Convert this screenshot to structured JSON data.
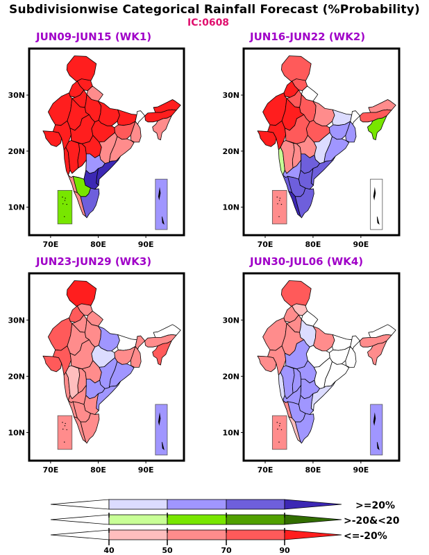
{
  "header": {
    "title": "Subdivisionwise Categorical Rainfall Forecast (%Probability)",
    "ic": "IC:0608"
  },
  "chart_data": {
    "type": "heatmap",
    "title": "Subdivisionwise Categorical Rainfall Forecast (%Probability)",
    "subtitle": "IC:0608",
    "lon_ticks": [
      "70E",
      "80E",
      "90E"
    ],
    "lat_ticks": [
      "30N",
      "20N",
      "10N"
    ],
    "legend": {
      "placement": "bottom",
      "bounds": [
        "40",
        "50",
        "70",
        "90"
      ],
      "categories": [
        {
          "label": ">=20%",
          "key": "above",
          "colors": [
            "#ffffff",
            "#dcdcff",
            "#a096ff",
            "#6e5fdc",
            "#3c28b4"
          ]
        },
        {
          "label": ">-20&<20",
          "key": "normal",
          "colors": [
            "#ffffff",
            "#c8ff96",
            "#78e600",
            "#50a000",
            "#326e00"
          ]
        },
        {
          "label": "<=-20%",
          "key": "below",
          "colors": [
            "#ffffff",
            "#ffbebe",
            "#ff8c8c",
            "#ff5a5a",
            "#ff1e1e"
          ]
        }
      ]
    },
    "panels": [
      {
        "title": "JUN09-JUN15 (WK1)",
        "regions": {
          "jk": "#ff1e1e",
          "hp": "#ff1e1e",
          "uk": "#ff8c8c",
          "pb": "#ff1e1e",
          "hr": "#ff1e1e",
          "wraj": "#ff1e1e",
          "eraj": "#ff1e1e",
          "wup": "#ff1e1e",
          "eup": "#ff1e1e",
          "bih": "#ff1e1e",
          "guj": "#ff1e1e",
          "saur": "#ff1e1e",
          "wmp": "#ff1e1e",
          "emp": "#ff1e1e",
          "jhk": "#ff5a5a",
          "gwb": "#ff8c8c",
          "shwb": "#ffffff",
          "ne_ar": "#ff1e1e",
          "ne_as": "#ff1e1e",
          "ne_nmmt": "#ff8c8c",
          "kon": "#ff1e1e",
          "mmh": "#ff1e1e",
          "mar": "#ff1e1e",
          "vid": "#ff1e1e",
          "chh": "#ff8c8c",
          "ori": "#ff8c8c",
          "tel": "#a096ff",
          "cap": "#3c28b4",
          "ray": "#3c28b4",
          "nik": "#ffffff",
          "ska": "#78e600",
          "cka": "#78e600",
          "ck": "#ff8c8c",
          "ker": "#ff8c8c",
          "tn": "#6e5fdc",
          "lak": "#78e600",
          "anI": "#a096ff"
        }
      },
      {
        "title": "JUN16-JUN22 (WK2)",
        "regions": {
          "jk": "#ff5a5a",
          "hp": "#ff5a5a",
          "uk": "#ffffff",
          "pb": "#ff1e1e",
          "hr": "#ff5a5a",
          "wraj": "#ff1e1e",
          "eraj": "#ff1e1e",
          "wup": "#ff5a5a",
          "eup": "#ff8c8c",
          "bih": "#dcdcff",
          "guj": "#ff1e1e",
          "saur": "#ff1e1e",
          "wmp": "#ff5a5a",
          "emp": "#ff5a5a",
          "jhk": "#a096ff",
          "gwb": "#a096ff",
          "shwb": "#ffffff",
          "ne_ar": "#ff8c8c",
          "ne_as": "#ff5a5a",
          "ne_nmmt": "#78e600",
          "kon": "#c8ff96",
          "mmh": "#ff8c8c",
          "mar": "#ff8c8c",
          "vid": "#ff8c8c",
          "chh": "#dcdcff",
          "ori": "#a096ff",
          "tel": "#6e5fdc",
          "cap": "#6e5fdc",
          "ray": "#6e5fdc",
          "nik": "#a096ff",
          "ska": "#6e5fdc",
          "cka": "#6e5fdc",
          "ck": "#6e5fdc",
          "ker": "#3c28b4",
          "tn": "#6e5fdc",
          "lak": "#ff8c8c",
          "anI": "#ffffff"
        }
      },
      {
        "title": "JUN23-JUN29 (WK3)",
        "regions": {
          "jk": "#ff1e1e",
          "hp": "#ff8c8c",
          "uk": "#ff8c8c",
          "pb": "#ff5a5a",
          "hr": "#ff8c8c",
          "wraj": "#ff5a5a",
          "eraj": "#ff8c8c",
          "wup": "#ff8c8c",
          "eup": "#a096ff",
          "bih": "#ffffff",
          "guj": "#ff5a5a",
          "saur": "#ff5a5a",
          "wmp": "#ff8c8c",
          "emp": "#dcdcff",
          "jhk": "#ff8c8c",
          "gwb": "#ff8c8c",
          "shwb": "#ff8c8c",
          "ne_ar": "#ffffff",
          "ne_as": "#ff8c8c",
          "ne_nmmt": "#ff5a5a",
          "kon": "#ff8c8c",
          "mmh": "#ffbebe",
          "mar": "#ff8c8c",
          "vid": "#ff8c8c",
          "chh": "#a096ff",
          "ori": "#a096ff",
          "tel": "#a096ff",
          "cap": "#a096ff",
          "ray": "#ff8c8c",
          "nik": "#ff8c8c",
          "ska": "#ff8c8c",
          "cka": "#ff8c8c",
          "ck": "#ff8c8c",
          "ker": "#ff8c8c",
          "tn": "#ff8c8c",
          "lak": "#ff8c8c",
          "anI": "#a096ff"
        }
      },
      {
        "title": "JUN30-JUL06 (WK4)",
        "regions": {
          "jk": "#ff5a5a",
          "hp": "#ffbebe",
          "uk": "#ffffff",
          "pb": "#ff8c8c",
          "hr": "#ff8c8c",
          "wraj": "#ff8c8c",
          "eraj": "#ff8c8c",
          "wup": "#dcdcff",
          "eup": "#ff8c8c",
          "bih": "#ffffff",
          "guj": "#ff8c8c",
          "saur": "#ff8c8c",
          "wmp": "#a096ff",
          "emp": "#ffffff",
          "jhk": "#ffffff",
          "gwb": "#ffffff",
          "shwb": "#ffffff",
          "ne_ar": "#ffffff",
          "ne_as": "#ff8c8c",
          "ne_nmmt": "#ff8c8c",
          "kon": "#dcdcff",
          "mmh": "#a096ff",
          "mar": "#a096ff",
          "vid": "#a096ff",
          "chh": "#ffffff",
          "ori": "#ffffff",
          "tel": "#a096ff",
          "cap": "#dcdcff",
          "ray": "#a096ff",
          "nik": "#a096ff",
          "ska": "#a096ff",
          "cka": "#a096ff",
          "ck": "#ff8c8c",
          "ker": "#ffbebe",
          "tn": "#a096ff",
          "lak": "#ff8c8c",
          "anI": "#a096ff"
        }
      }
    ]
  }
}
